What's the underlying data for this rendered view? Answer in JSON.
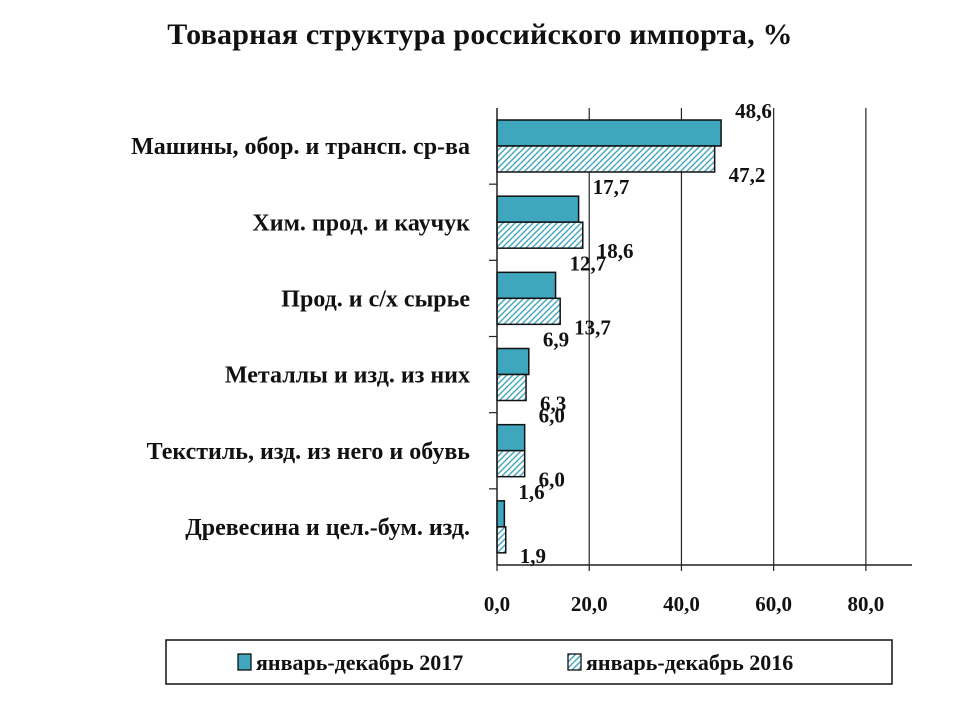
{
  "chart_data": {
    "type": "bar",
    "orientation": "horizontal",
    "title": "Товарная структура российского импорта, %",
    "categories": [
      "Машины, обор. и трансп. ср-ва",
      "Хим. прод. и каучук",
      "Прод. и с/х сырье",
      "Металлы и изд. из них",
      "Текстиль, изд. из него и обувь",
      "Древесина и цел.-бум. изд."
    ],
    "series": [
      {
        "name": "январь-декабрь 2017",
        "values": [
          48.6,
          17.7,
          12.7,
          6.9,
          6.0,
          1.6
        ],
        "labels": [
          "48,6",
          "17,7",
          "12,7",
          "6,9",
          "6,0",
          "1,6"
        ],
        "color": "#3ea6bd",
        "fill": "solid"
      },
      {
        "name": "январь-декабрь 2016",
        "values": [
          47.2,
          18.6,
          13.7,
          6.3,
          6.0,
          1.9
        ],
        "labels": [
          "47,2",
          "18,6",
          "13,7",
          "6,3",
          "6,0",
          "1,9"
        ],
        "color": "#3ea6bd",
        "fill": "hatched"
      }
    ],
    "xlim": [
      0,
      90
    ],
    "xticks": [
      0,
      20,
      40,
      60,
      80
    ],
    "xtick_labels": [
      "0,0",
      "20,0",
      "40,0",
      "60,0",
      "80,0"
    ],
    "grid": "vertical",
    "legend_position": "bottom",
    "xlabel": "",
    "ylabel": ""
  }
}
